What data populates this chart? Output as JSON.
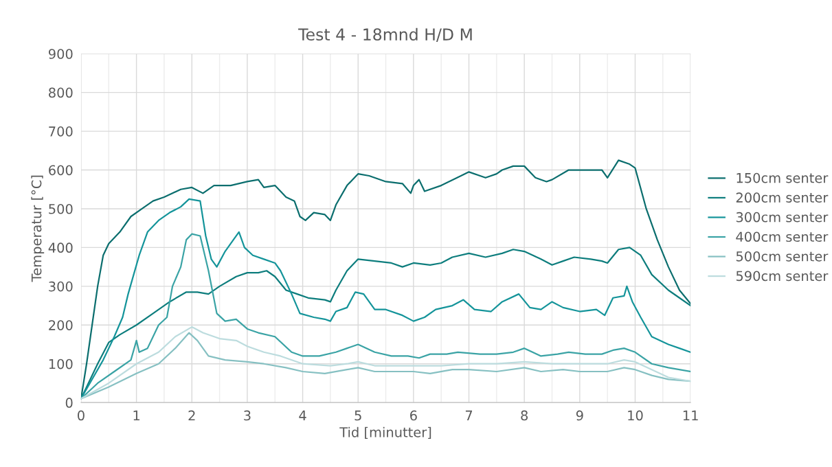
{
  "chart_data": {
    "type": "line",
    "title": "Test 4 - 18mnd H/D M",
    "xlabel": "Tid [minutter]",
    "ylabel": "Temperatur [°C]",
    "xlim": [
      0,
      11
    ],
    "ylim": [
      0,
      900
    ],
    "xticks": [
      0,
      {
        "value": 0.5,
        "label": null
      },
      1,
      {
        "value": 1.5,
        "label": null
      },
      2,
      {
        "value": 2.5,
        "label": null
      },
      3,
      {
        "value": 3.5,
        "label": null
      },
      4,
      {
        "value": 4.5,
        "label": null
      },
      5,
      {
        "value": 5.5,
        "label": null
      },
      6,
      {
        "value": 6.5,
        "label": null
      },
      7,
      {
        "value": 7.5,
        "label": null
      },
      8,
      {
        "value": 8.5,
        "label": null
      },
      9,
      {
        "value": 9.5,
        "label": null
      },
      10,
      {
        "value": 10.5,
        "label": null
      },
      11
    ],
    "yticks": [
      0,
      100,
      200,
      300,
      400,
      500,
      600,
      700,
      800,
      900
    ],
    "grid": true,
    "legend": "right",
    "marker": "none",
    "line_style": "solid",
    "series": [
      {
        "name": "150cm senter",
        "color": "#0b6e6e",
        "x": [
          0,
          0.1,
          0.2,
          0.3,
          0.4,
          0.5,
          0.7,
          0.9,
          1.1,
          1.3,
          1.5,
          1.8,
          2.0,
          2.2,
          2.4,
          2.7,
          3.0,
          3.2,
          3.3,
          3.5,
          3.7,
          3.85,
          3.95,
          4.05,
          4.2,
          4.4,
          4.5,
          4.6,
          4.8,
          5.0,
          5.2,
          5.5,
          5.8,
          5.95,
          6.0,
          6.1,
          6.2,
          6.5,
          7.0,
          7.3,
          7.5,
          7.6,
          7.8,
          8.0,
          8.2,
          8.4,
          8.5,
          8.8,
          9.2,
          9.4,
          9.5,
          9.7,
          9.9,
          10.0,
          10.2,
          10.4,
          10.6,
          10.8,
          11.0
        ],
        "values": [
          10,
          100,
          200,
          300,
          380,
          410,
          440,
          480,
          500,
          520,
          530,
          550,
          555,
          540,
          560,
          560,
          570,
          575,
          555,
          560,
          530,
          520,
          480,
          470,
          490,
          485,
          470,
          510,
          560,
          590,
          585,
          570,
          565,
          540,
          560,
          575,
          545,
          560,
          595,
          580,
          590,
          600,
          610,
          610,
          580,
          570,
          575,
          600,
          600,
          600,
          580,
          625,
          615,
          605,
          500,
          420,
          350,
          290,
          255
        ]
      },
      {
        "name": "200cm senter",
        "color": "#0d7d7d",
        "x": [
          0,
          0.3,
          0.5,
          0.7,
          1.0,
          1.3,
          1.6,
          1.9,
          2.1,
          2.3,
          2.5,
          2.8,
          3.0,
          3.2,
          3.35,
          3.5,
          3.7,
          3.9,
          4.1,
          4.4,
          4.5,
          4.6,
          4.8,
          5.0,
          5.3,
          5.6,
          5.8,
          6.0,
          6.3,
          6.5,
          6.7,
          7.0,
          7.3,
          7.6,
          7.8,
          8.0,
          8.3,
          8.5,
          8.7,
          8.9,
          9.2,
          9.4,
          9.5,
          9.7,
          9.9,
          10.1,
          10.3,
          10.6,
          10.8,
          11.0
        ],
        "values": [
          10,
          100,
          155,
          175,
          200,
          230,
          260,
          285,
          285,
          280,
          300,
          325,
          335,
          335,
          340,
          325,
          290,
          280,
          270,
          265,
          260,
          290,
          340,
          370,
          365,
          360,
          350,
          360,
          355,
          360,
          375,
          385,
          375,
          385,
          395,
          390,
          370,
          355,
          365,
          375,
          370,
          365,
          360,
          395,
          400,
          380,
          330,
          290,
          270,
          250
        ]
      },
      {
        "name": "300cm senter",
        "color": "#14949a",
        "x": [
          0,
          0.2,
          0.4,
          0.6,
          0.75,
          0.85,
          0.95,
          1.05,
          1.2,
          1.4,
          1.6,
          1.8,
          1.95,
          2.15,
          2.25,
          2.35,
          2.45,
          2.6,
          2.75,
          2.85,
          2.95,
          3.1,
          3.3,
          3.5,
          3.6,
          3.8,
          3.95,
          4.2,
          4.4,
          4.5,
          4.6,
          4.8,
          4.95,
          5.1,
          5.3,
          5.5,
          5.8,
          6.0,
          6.2,
          6.4,
          6.7,
          6.9,
          7.1,
          7.4,
          7.6,
          7.9,
          8.1,
          8.3,
          8.5,
          8.7,
          9.0,
          9.3,
          9.45,
          9.6,
          9.8,
          9.85,
          9.95,
          10.1,
          10.3,
          10.6,
          10.8,
          11.0
        ],
        "values": [
          10,
          60,
          110,
          170,
          220,
          280,
          330,
          380,
          440,
          470,
          490,
          505,
          525,
          520,
          430,
          370,
          350,
          390,
          420,
          440,
          400,
          380,
          370,
          360,
          340,
          280,
          230,
          220,
          215,
          210,
          235,
          245,
          285,
          280,
          240,
          240,
          225,
          210,
          220,
          240,
          250,
          265,
          240,
          235,
          260,
          280,
          245,
          240,
          260,
          245,
          235,
          240,
          225,
          270,
          275,
          300,
          260,
          220,
          170,
          150,
          140,
          130
        ]
      },
      {
        "name": "400cm senter",
        "color": "#3aa3a5",
        "x": [
          0,
          0.3,
          0.6,
          0.9,
          1.0,
          1.05,
          1.2,
          1.4,
          1.55,
          1.65,
          1.8,
          1.9,
          2.0,
          2.15,
          2.3,
          2.45,
          2.6,
          2.8,
          3.0,
          3.2,
          3.5,
          3.8,
          4.0,
          4.3,
          4.6,
          4.8,
          5.0,
          5.3,
          5.6,
          5.9,
          6.1,
          6.3,
          6.6,
          6.8,
          7.2,
          7.5,
          7.8,
          8.0,
          8.3,
          8.6,
          8.8,
          9.1,
          9.4,
          9.6,
          9.8,
          10.0,
          10.3,
          10.6,
          11.0
        ],
        "values": [
          10,
          50,
          80,
          110,
          160,
          130,
          140,
          200,
          220,
          300,
          350,
          420,
          435,
          430,
          340,
          230,
          210,
          215,
          190,
          180,
          170,
          130,
          120,
          120,
          130,
          140,
          150,
          130,
          120,
          120,
          115,
          125,
          125,
          130,
          125,
          125,
          130,
          140,
          120,
          125,
          130,
          125,
          125,
          135,
          140,
          130,
          100,
          90,
          80
        ]
      },
      {
        "name": "500cm senter",
        "color": "#86c0c2",
        "x": [
          0,
          0.5,
          1.0,
          1.4,
          1.7,
          1.95,
          2.1,
          2.3,
          2.6,
          3.0,
          3.3,
          3.7,
          4.0,
          4.4,
          4.8,
          5.0,
          5.3,
          5.7,
          6.0,
          6.3,
          6.7,
          7.0,
          7.5,
          8.0,
          8.3,
          8.7,
          9.0,
          9.5,
          9.8,
          10.0,
          10.3,
          10.6,
          11.0
        ],
        "values": [
          10,
          40,
          75,
          100,
          140,
          180,
          160,
          120,
          110,
          105,
          100,
          90,
          80,
          75,
          85,
          90,
          80,
          80,
          80,
          75,
          85,
          85,
          80,
          90,
          80,
          85,
          80,
          80,
          90,
          85,
          70,
          60,
          55
        ]
      },
      {
        "name": "590cm senter",
        "color": "#bcdcde",
        "x": [
          0,
          0.5,
          1.0,
          1.4,
          1.7,
          2.0,
          2.2,
          2.5,
          2.8,
          3.0,
          3.3,
          3.6,
          4.0,
          4.5,
          4.8,
          5.0,
          5.3,
          6.0,
          6.5,
          7.0,
          7.5,
          8.0,
          8.5,
          9.0,
          9.5,
          9.8,
          10.0,
          10.3,
          10.6,
          11.0
        ],
        "values": [
          10,
          50,
          100,
          130,
          170,
          195,
          180,
          165,
          160,
          145,
          130,
          120,
          100,
          95,
          100,
          105,
          95,
          95,
          95,
          100,
          100,
          105,
          100,
          100,
          100,
          110,
          105,
          85,
          65,
          55
        ]
      }
    ]
  }
}
